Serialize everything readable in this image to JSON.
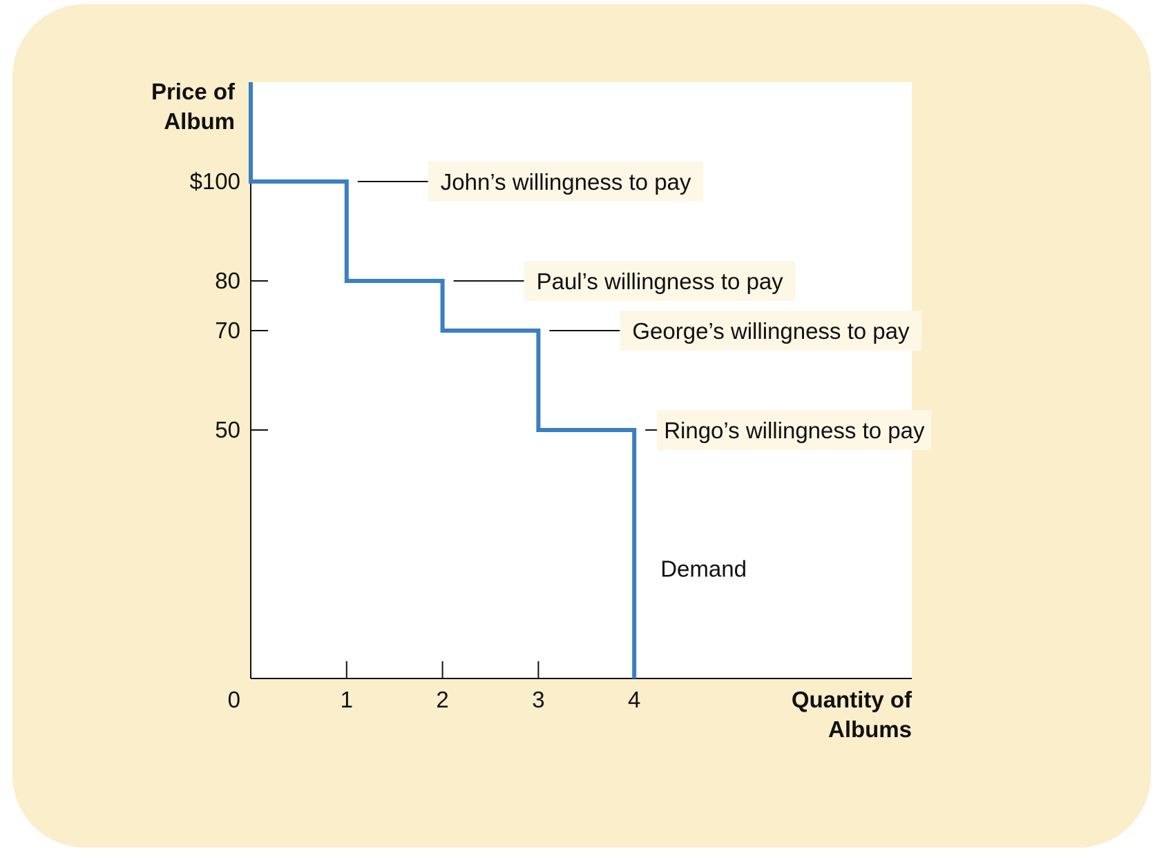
{
  "chart_data": {
    "type": "line",
    "step": true,
    "title": "",
    "xlabel": [
      "Quantity of",
      "Albums"
    ],
    "ylabel": [
      "Price of",
      "Album"
    ],
    "origin_label": "0",
    "x_ticks": [
      {
        "value": 1,
        "label": "1"
      },
      {
        "value": 2,
        "label": "2"
      },
      {
        "value": 3,
        "label": "3"
      },
      {
        "value": 4,
        "label": "4"
      }
    ],
    "y_ticks": [
      {
        "value": 100,
        "label": "$100"
      },
      {
        "value": 80,
        "label": "80"
      },
      {
        "value": 70,
        "label": "70"
      },
      {
        "value": 50,
        "label": "50"
      }
    ],
    "xlim": [
      0,
      6.9
    ],
    "ylim": [
      0,
      120
    ],
    "series": [
      {
        "name": "Demand",
        "color": "#3a7fc1",
        "points": [
          [
            0,
            120
          ],
          [
            0,
            100
          ],
          [
            1,
            100
          ],
          [
            1,
            80
          ],
          [
            2,
            80
          ],
          [
            2,
            70
          ],
          [
            3,
            70
          ],
          [
            3,
            50
          ],
          [
            4,
            50
          ],
          [
            4,
            0
          ]
        ]
      }
    ],
    "annotations": [
      {
        "text": "John’s willingness to pay",
        "x": 1,
        "y": 100
      },
      {
        "text": "Paul’s willingness to pay",
        "x": 2,
        "y": 80
      },
      {
        "text": "George’s willingness to pay",
        "x": 3,
        "y": 70
      },
      {
        "text": "Ringo’s willingness to pay",
        "x": 4,
        "y": 50
      }
    ],
    "curve_label": {
      "text": "Demand",
      "x": 4,
      "y": 22
    },
    "colors": {
      "background": "#faeecb",
      "plot": "#ffffff",
      "line": "#3a7fc1",
      "label_box": "#fdf7e6"
    }
  }
}
